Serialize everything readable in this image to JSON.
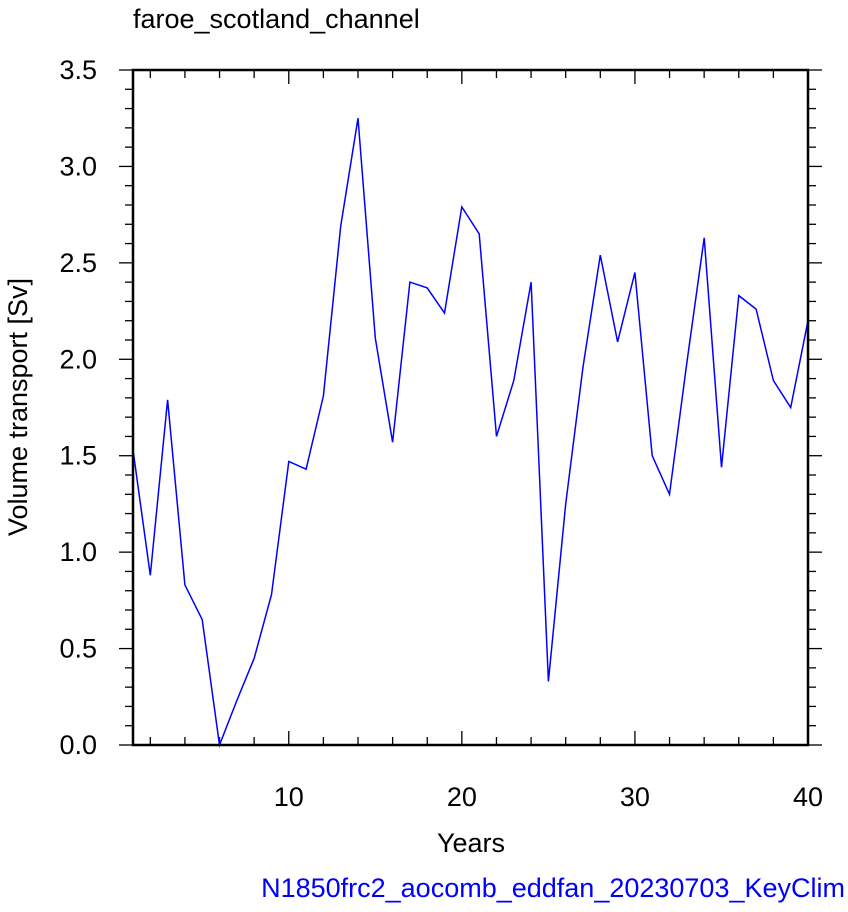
{
  "chart_data": {
    "type": "line",
    "title": "faroe_scotland_channel",
    "xlabel": "Years",
    "ylabel": "Volume transport [Sv]",
    "footer": "N1850frc2_aocomb_eddfan_20230703_KeyClim",
    "xlim": [
      1,
      40
    ],
    "ylim": [
      0.0,
      3.5
    ],
    "x_ticks": [
      10,
      20,
      30,
      40
    ],
    "y_ticks": [
      "0.0",
      "0.5",
      "1.0",
      "1.5",
      "2.0",
      "2.5",
      "3.0",
      "3.5"
    ],
    "grid": false,
    "series": [
      {
        "color": "#0000ff",
        "x": [
          1,
          2,
          3,
          4,
          5,
          6,
          7,
          8,
          9,
          10,
          11,
          12,
          13,
          14,
          15,
          16,
          17,
          18,
          19,
          20,
          21,
          22,
          23,
          24,
          25,
          26,
          27,
          28,
          29,
          30,
          31,
          32,
          33,
          34,
          35,
          36,
          37,
          38,
          39,
          40
        ],
        "values": [
          1.53,
          0.88,
          1.79,
          0.83,
          0.65,
          0.0,
          0.23,
          0.45,
          0.78,
          1.47,
          1.43,
          1.81,
          2.69,
          3.25,
          2.11,
          1.57,
          2.4,
          2.37,
          2.24,
          2.79,
          2.65,
          1.6,
          1.89,
          2.4,
          0.33,
          1.25,
          1.96,
          2.54,
          2.09,
          2.45,
          1.5,
          1.3,
          1.98,
          2.63,
          1.44,
          2.33,
          2.26,
          1.89,
          1.75,
          2.2
        ]
      }
    ]
  },
  "colors": {
    "series": "#0000ff",
    "footer": "#0000ff",
    "axis": "#000000"
  }
}
